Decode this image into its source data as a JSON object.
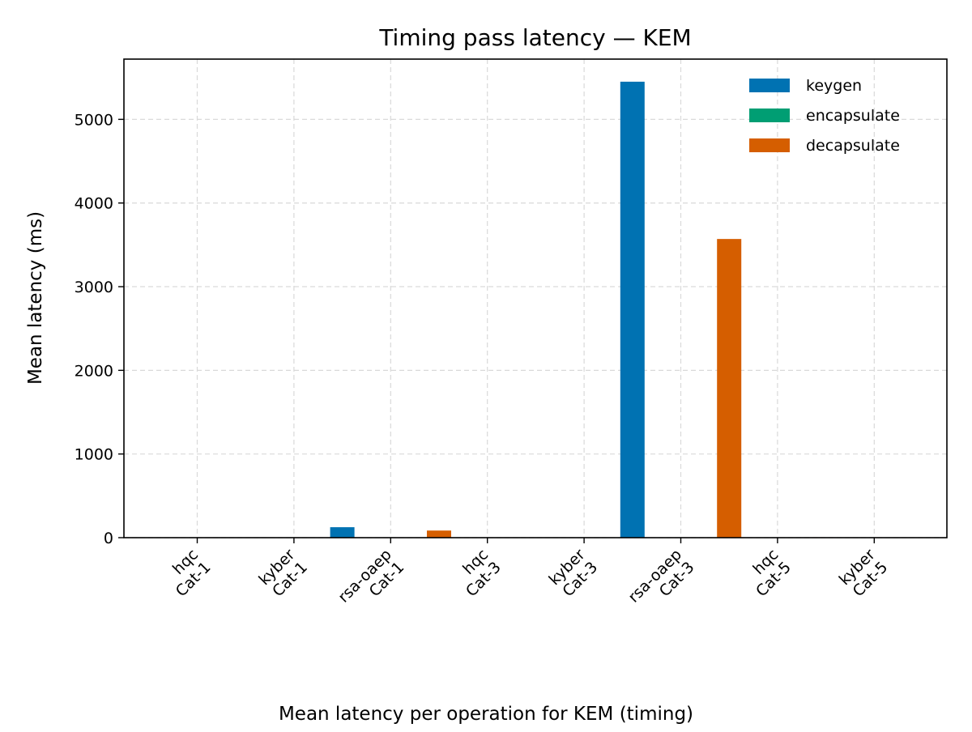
{
  "chart_data": {
    "type": "bar",
    "title": "Timing pass latency — KEM",
    "xlabel": "",
    "ylabel": "Mean latency (ms)",
    "caption": "Mean latency per operation for KEM (timing)",
    "ylim": [
      0,
      5720
    ],
    "yticks": [
      0,
      1000,
      2000,
      3000,
      4000,
      5000
    ],
    "grid": true,
    "legend_position": "top-right",
    "categories": [
      [
        "hqc",
        "Cat-1"
      ],
      [
        "kyber",
        "Cat-1"
      ],
      [
        "rsa-oaep",
        "Cat-1"
      ],
      [
        "hqc",
        "Cat-3"
      ],
      [
        "kyber",
        "Cat-3"
      ],
      [
        "rsa-oaep",
        "Cat-3"
      ],
      [
        "hqc",
        "Cat-5"
      ],
      [
        "kyber",
        "Cat-5"
      ]
    ],
    "series": [
      {
        "name": "keygen",
        "color": "#0072b2",
        "values": [
          0.5,
          0.2,
          125,
          0.8,
          0.3,
          5450,
          1.5,
          0.4
        ]
      },
      {
        "name": "encapsulate",
        "color": "#009e73",
        "values": [
          1,
          0.3,
          2,
          2,
          0.4,
          4,
          3,
          0.5
        ]
      },
      {
        "name": "decapsulate",
        "color": "#d55e00",
        "values": [
          1.5,
          0.4,
          85,
          3,
          0.5,
          3570,
          5,
          0.6
        ]
      }
    ]
  }
}
